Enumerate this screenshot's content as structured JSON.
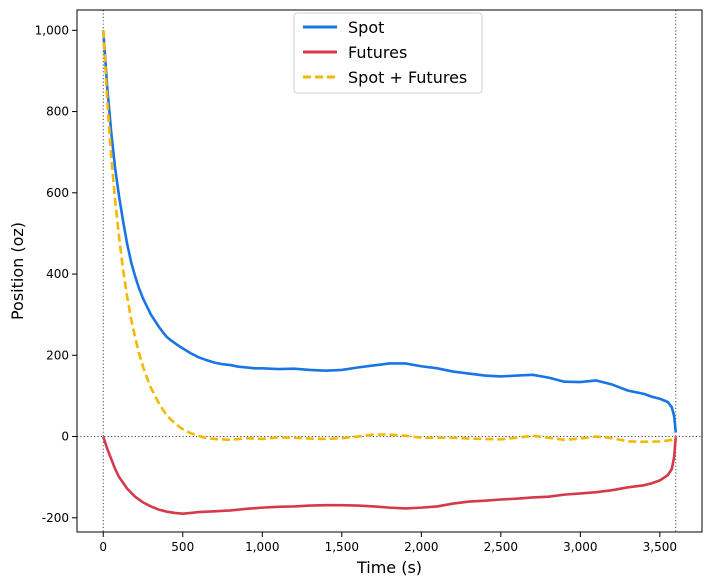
{
  "chart_data": {
    "type": "line",
    "title": "",
    "xlabel": "Time (s)",
    "ylabel": "Position (oz)",
    "xlim": [
      -165,
      3765
    ],
    "ylim": [
      -235,
      1050
    ],
    "x_ticks": [
      0,
      500,
      1000,
      1500,
      2000,
      2500,
      3000,
      3500
    ],
    "x_tick_labels": [
      "0",
      "500",
      "1,000",
      "1,500",
      "2,000",
      "2,500",
      "3,000",
      "3,500"
    ],
    "y_ticks": [
      -200,
      0,
      200,
      400,
      600,
      800,
      1000
    ],
    "y_tick_labels": [
      "-200",
      "0",
      "200",
      "400",
      "600",
      "800",
      "1,000"
    ],
    "grid": false,
    "reference_lines": [
      {
        "axis": "x",
        "value": 0,
        "style": "dotted"
      },
      {
        "axis": "x",
        "value": 3600,
        "style": "dotted"
      },
      {
        "axis": "y",
        "value": 0,
        "style": "dotted"
      }
    ],
    "legend": {
      "position": "top-center"
    },
    "series": [
      {
        "name": "Spot",
        "color": "#1a74e6",
        "dash": "solid",
        "points": [
          [
            0,
            1000
          ],
          [
            25,
            860
          ],
          [
            50,
            750
          ],
          [
            75,
            660
          ],
          [
            100,
            590
          ],
          [
            125,
            530
          ],
          [
            150,
            475
          ],
          [
            175,
            430
          ],
          [
            200,
            395
          ],
          [
            225,
            365
          ],
          [
            250,
            340
          ],
          [
            275,
            320
          ],
          [
            300,
            300
          ],
          [
            325,
            285
          ],
          [
            350,
            270
          ],
          [
            375,
            257
          ],
          [
            400,
            245
          ],
          [
            425,
            237
          ],
          [
            450,
            230
          ],
          [
            475,
            223
          ],
          [
            500,
            217
          ],
          [
            550,
            205
          ],
          [
            600,
            195
          ],
          [
            650,
            188
          ],
          [
            700,
            182
          ],
          [
            750,
            178
          ],
          [
            800,
            176
          ],
          [
            850,
            172
          ],
          [
            900,
            170
          ],
          [
            950,
            168
          ],
          [
            1000,
            168
          ],
          [
            1100,
            166
          ],
          [
            1200,
            167
          ],
          [
            1300,
            164
          ],
          [
            1400,
            162
          ],
          [
            1500,
            164
          ],
          [
            1600,
            170
          ],
          [
            1700,
            175
          ],
          [
            1800,
            180
          ],
          [
            1900,
            180
          ],
          [
            2000,
            173
          ],
          [
            2100,
            168
          ],
          [
            2200,
            160
          ],
          [
            2300,
            155
          ],
          [
            2400,
            150
          ],
          [
            2500,
            148
          ],
          [
            2600,
            150
          ],
          [
            2700,
            152
          ],
          [
            2800,
            145
          ],
          [
            2900,
            135
          ],
          [
            3000,
            134
          ],
          [
            3100,
            138
          ],
          [
            3200,
            128
          ],
          [
            3300,
            113
          ],
          [
            3400,
            105
          ],
          [
            3450,
            98
          ],
          [
            3500,
            93
          ],
          [
            3550,
            85
          ],
          [
            3575,
            72
          ],
          [
            3590,
            50
          ],
          [
            3600,
            10
          ]
        ]
      },
      {
        "name": "Futures",
        "color": "#d63a4a",
        "dash": "solid",
        "points": [
          [
            0,
            0
          ],
          [
            25,
            -30
          ],
          [
            50,
            -55
          ],
          [
            75,
            -80
          ],
          [
            100,
            -100
          ],
          [
            150,
            -128
          ],
          [
            200,
            -148
          ],
          [
            250,
            -162
          ],
          [
            300,
            -172
          ],
          [
            350,
            -180
          ],
          [
            400,
            -185
          ],
          [
            450,
            -188
          ],
          [
            500,
            -190
          ],
          [
            550,
            -188
          ],
          [
            600,
            -186
          ],
          [
            700,
            -184
          ],
          [
            800,
            -182
          ],
          [
            900,
            -178
          ],
          [
            1000,
            -175
          ],
          [
            1100,
            -173
          ],
          [
            1200,
            -172
          ],
          [
            1300,
            -170
          ],
          [
            1400,
            -169
          ],
          [
            1500,
            -169
          ],
          [
            1600,
            -170
          ],
          [
            1700,
            -172
          ],
          [
            1800,
            -175
          ],
          [
            1900,
            -177
          ],
          [
            2000,
            -175
          ],
          [
            2100,
            -172
          ],
          [
            2200,
            -165
          ],
          [
            2300,
            -160
          ],
          [
            2400,
            -158
          ],
          [
            2500,
            -155
          ],
          [
            2600,
            -153
          ],
          [
            2700,
            -150
          ],
          [
            2800,
            -148
          ],
          [
            2900,
            -143
          ],
          [
            3000,
            -140
          ],
          [
            3100,
            -137
          ],
          [
            3200,
            -132
          ],
          [
            3300,
            -125
          ],
          [
            3400,
            -120
          ],
          [
            3450,
            -115
          ],
          [
            3500,
            -108
          ],
          [
            3550,
            -95
          ],
          [
            3575,
            -80
          ],
          [
            3590,
            -50
          ],
          [
            3600,
            0
          ]
        ]
      },
      {
        "name": "Spot + Futures",
        "color": "#f5b800",
        "dash": "dashed",
        "points": [
          [
            0,
            1000
          ],
          [
            25,
            830
          ],
          [
            50,
            690
          ],
          [
            75,
            580
          ],
          [
            100,
            490
          ],
          [
            125,
            410
          ],
          [
            150,
            345
          ],
          [
            175,
            290
          ],
          [
            200,
            245
          ],
          [
            225,
            205
          ],
          [
            250,
            172
          ],
          [
            275,
            145
          ],
          [
            300,
            120
          ],
          [
            325,
            100
          ],
          [
            350,
            82
          ],
          [
            375,
            66
          ],
          [
            400,
            52
          ],
          [
            425,
            42
          ],
          [
            450,
            33
          ],
          [
            475,
            25
          ],
          [
            500,
            18
          ],
          [
            550,
            8
          ],
          [
            600,
            2
          ],
          [
            650,
            -4
          ],
          [
            700,
            -6
          ],
          [
            800,
            -8
          ],
          [
            900,
            -4
          ],
          [
            1000,
            -6
          ],
          [
            1100,
            -2
          ],
          [
            1200,
            -3
          ],
          [
            1300,
            -5
          ],
          [
            1400,
            -6
          ],
          [
            1500,
            -4
          ],
          [
            1600,
            0
          ],
          [
            1700,
            5
          ],
          [
            1800,
            5
          ],
          [
            1900,
            2
          ],
          [
            2000,
            -3
          ],
          [
            2100,
            -3
          ],
          [
            2200,
            -3
          ],
          [
            2300,
            -5
          ],
          [
            2400,
            -6
          ],
          [
            2500,
            -7
          ],
          [
            2600,
            -3
          ],
          [
            2700,
            2
          ],
          [
            2800,
            -3
          ],
          [
            2900,
            -8
          ],
          [
            3000,
            -5
          ],
          [
            3100,
            0
          ],
          [
            3200,
            -4
          ],
          [
            3300,
            -12
          ],
          [
            3400,
            -13
          ],
          [
            3500,
            -12
          ],
          [
            3550,
            -10
          ],
          [
            3575,
            -8
          ],
          [
            3600,
            0
          ]
        ]
      }
    ]
  }
}
